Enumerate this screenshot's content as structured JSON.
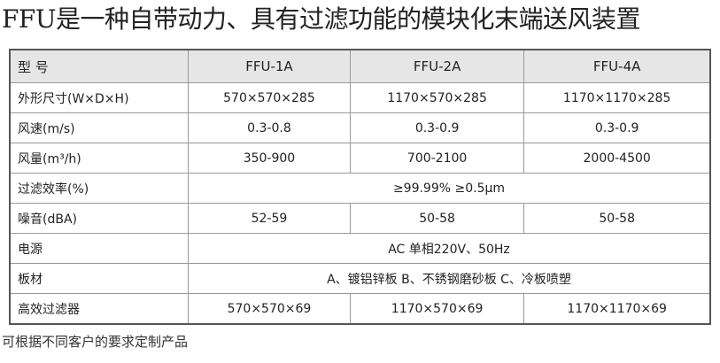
{
  "title": "FFU是一种自带动力、具有过滤功能的模块化末端送风装置",
  "table": {
    "header": [
      "型 号",
      "FFU-1A",
      "FFU-2A",
      "FFU-4A"
    ],
    "rows": [
      [
        "外形尺寸(W×D×H)",
        "570×570×285",
        "1170×570×285",
        "1170×1170×285"
      ],
      [
        "风速(m/s)",
        "0.3-0.8",
        "0.3-0.9",
        "0.3-0.9"
      ],
      [
        "风量(m³/h)",
        "350-900",
        "700-2100",
        "2000-4500"
      ],
      [
        "过滤效率(%)",
        "≥99.99% ≥0.5μm"
      ],
      [
        "噪音(dBA)",
        "52-59",
        "50-58",
        "50-58"
      ],
      [
        "电源",
        "AC 单相220V、50Hz"
      ],
      [
        "板材",
        "A、镀铝锌板 B、不锈钢磨砂板 C、冷板喷塑"
      ],
      [
        "高效过滤器",
        "570×570×69",
        "1170×570×69",
        "1170×1170×69"
      ]
    ]
  },
  "footnote": "可根据不同客户的要求定制产品"
}
